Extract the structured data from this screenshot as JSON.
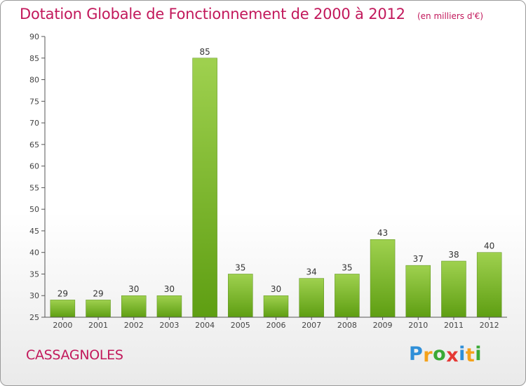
{
  "chart_data": {
    "type": "bar",
    "title": "Dotation Globale de Fonctionnement de 2000 à 2012",
    "unit_note": "(en milliers d'€)",
    "categories": [
      "2000",
      "2001",
      "2002",
      "2003",
      "2004",
      "2005",
      "2006",
      "2007",
      "2008",
      "2009",
      "2010",
      "2011",
      "2012"
    ],
    "values": [
      29,
      29,
      30,
      30,
      85,
      35,
      30,
      34,
      35,
      43,
      37,
      38,
      40
    ],
    "ylim": [
      25,
      90
    ],
    "yticks": [
      25,
      30,
      35,
      40,
      45,
      50,
      55,
      60,
      65,
      70,
      75,
      80,
      85,
      90
    ],
    "xlabel": "",
    "ylabel": "",
    "grid": false,
    "colors": {
      "bar_light": "#9fd14f",
      "bar_dark": "#5e9e12",
      "title": "#c2185b"
    }
  },
  "commune": "CASSAGNOLES",
  "logo": {
    "letters": [
      "P",
      "r",
      "o",
      "x",
      "i",
      "t",
      "i"
    ],
    "colors": [
      "#2f8fd8",
      "#f4a21b",
      "#3aa935",
      "#e53935",
      "#2f8fd8",
      "#f4a21b",
      "#3aa935"
    ]
  }
}
